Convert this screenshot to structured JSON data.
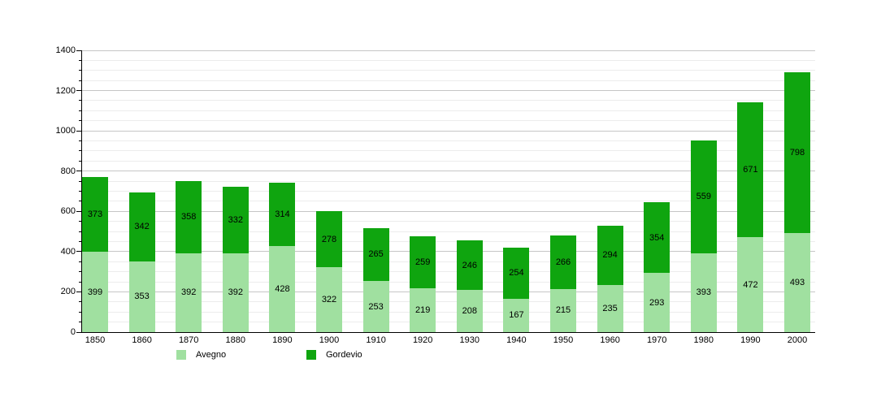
{
  "chart_data": {
    "type": "bar",
    "stacked": true,
    "title": "",
    "categories": [
      "1850",
      "1860",
      "1870",
      "1880",
      "1890",
      "1900",
      "1910",
      "1920",
      "1930",
      "1940",
      "1950",
      "1960",
      "1970",
      "1980",
      "1990",
      "2000"
    ],
    "series": [
      {
        "name": "Avegno",
        "color": "#a0e0a0",
        "values": [
          399,
          353,
          392,
          392,
          428,
          322,
          253,
          219,
          208,
          167,
          215,
          235,
          293,
          393,
          472,
          493
        ]
      },
      {
        "name": "Gordevio",
        "color": "#0fa50f",
        "values": [
          373,
          342,
          358,
          332,
          314,
          278,
          265,
          259,
          246,
          254,
          266,
          294,
          354,
          559,
          671,
          798
        ]
      }
    ],
    "ylim": [
      0,
      1400
    ],
    "y_major_step": 200,
    "y_minor_step": 50,
    "y_tick_labels": [
      "0",
      "200",
      "400",
      "600",
      "800",
      "1000",
      "1200",
      "1400"
    ],
    "grid": "horizontal",
    "legend_position": "bottom",
    "show_value_labels": true,
    "value_label_color": "#000000",
    "axis_color": "#000000",
    "background_color": "#ffffff"
  }
}
